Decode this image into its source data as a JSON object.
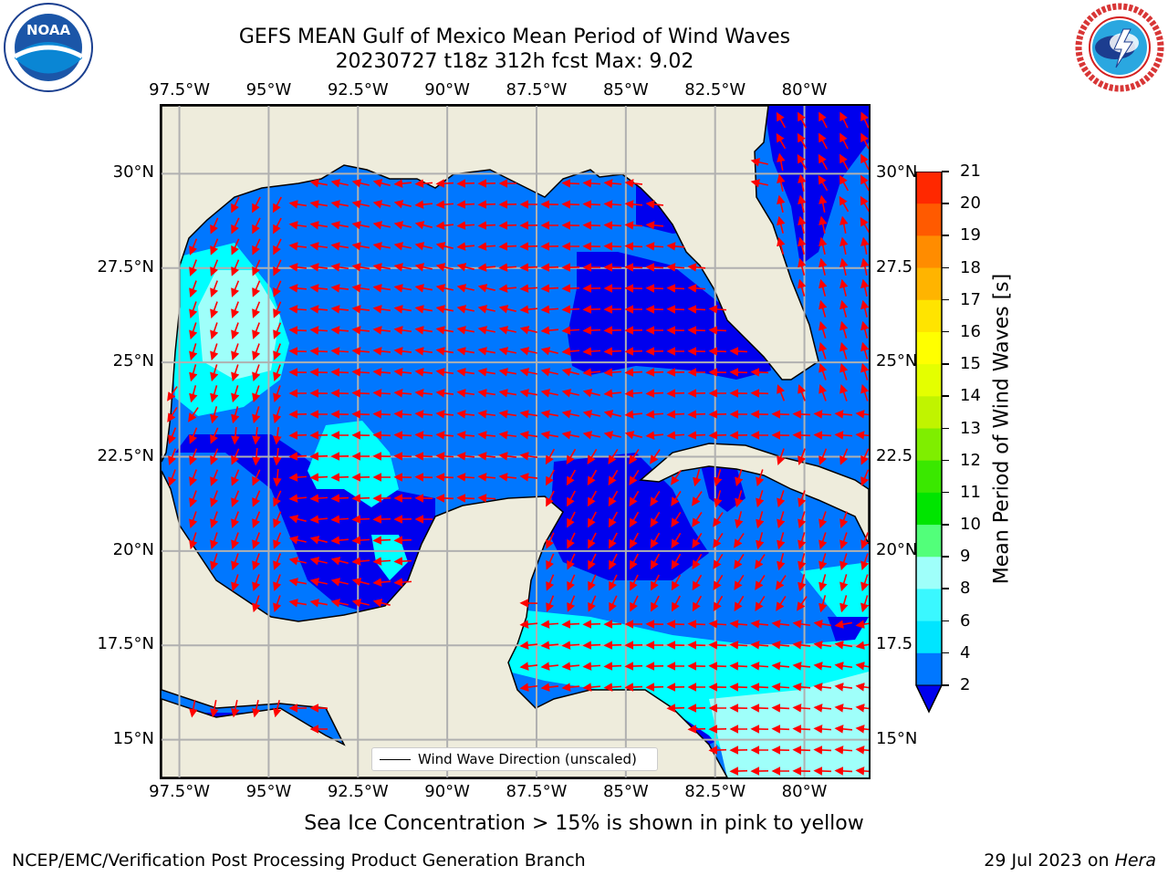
{
  "header": {
    "title_line1": "GEFS MEAN Gulf of Mexico Mean Period of Wind Waves",
    "title_line2": "20230727 t18z 312h fcst   Max: 9.02"
  },
  "logos": {
    "left_name": "NOAA",
    "right_name": "NATIONAL WEATHER SERVICE"
  },
  "map": {
    "lon_labels": [
      "97.5°W",
      "95°W",
      "92.5°W",
      "90°W",
      "87.5°W",
      "85°W",
      "82.5°W",
      "80°W"
    ],
    "lon_values": [
      -97.5,
      -95,
      -92.5,
      -90,
      -87.5,
      -85,
      -82.5,
      -80
    ],
    "lat_labels_left": [
      "30°N",
      "27.5°N",
      "25°N",
      "22.5°N",
      "20°N",
      "17.5°N",
      "15°N"
    ],
    "lat_labels_right": [
      "30°N",
      "27.5",
      "25°N",
      "22.5",
      "20°N",
      "17.5",
      "15°N"
    ],
    "lat_values": [
      30,
      27.5,
      25,
      22.5,
      20,
      17.5,
      15
    ],
    "extent": {
      "lon_min": -98,
      "lon_max": -78.2,
      "lat_min": 14,
      "lat_max": 31.8
    },
    "legend_label": "Wind Wave Direction (unscaled)",
    "colors": {
      "land": "#eeecdc",
      "dark_blue": "#0000ee",
      "mid_blue": "#0077ff",
      "cyan": "#00ffff",
      "pale_cyan": "#9ffffa",
      "arrow": "#ff0000",
      "grid": "#b0b0b0"
    }
  },
  "colorbar": {
    "label": "Mean Period of Wind Waves [s]",
    "ticks": [
      "2",
      "4",
      "6",
      "8",
      "9",
      "10",
      "11",
      "12",
      "13",
      "14",
      "15",
      "16",
      "17",
      "18",
      "19",
      "20",
      "21"
    ],
    "colors": [
      "#0077ff",
      "#00e5ff",
      "#3af8ff",
      "#9ffffa",
      "#52ff7a",
      "#00e500",
      "#3ae800",
      "#7fee00",
      "#c0f400",
      "#e4ff00",
      "#ffff00",
      "#ffe400",
      "#ffb400",
      "#ff8c00",
      "#ff5a00",
      "#ff2800"
    ],
    "extend_color": "#0000ee"
  },
  "footer": {
    "note": "Sea Ice Concentration > 15% is shown in pink to yellow",
    "left": "NCEP/EMC/Verification Post Processing Product Generation Branch",
    "right_date": "29 Jul 2023 on ",
    "right_host": "Hera"
  }
}
